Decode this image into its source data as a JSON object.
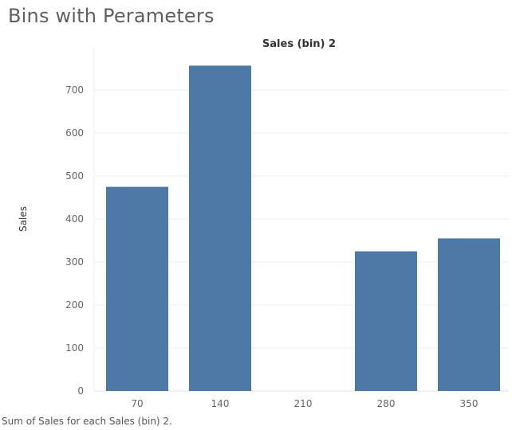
{
  "page_title": "Bins with Perameters",
  "caption": "Sum of Sales for each Sales (bin) 2.",
  "chart_data": {
    "type": "bar",
    "title": "Sales (bin) 2",
    "xlabel": "",
    "ylabel": "Sales",
    "categories": [
      "70",
      "140",
      "210",
      "280",
      "350"
    ],
    "values": [
      475,
      757,
      0,
      325,
      355
    ],
    "ylim": [
      0,
      780
    ],
    "yticks": [
      0,
      100,
      200,
      300,
      400,
      500,
      600,
      700
    ],
    "grid": true,
    "legend": "none",
    "bar_color": "#4e79a7"
  }
}
